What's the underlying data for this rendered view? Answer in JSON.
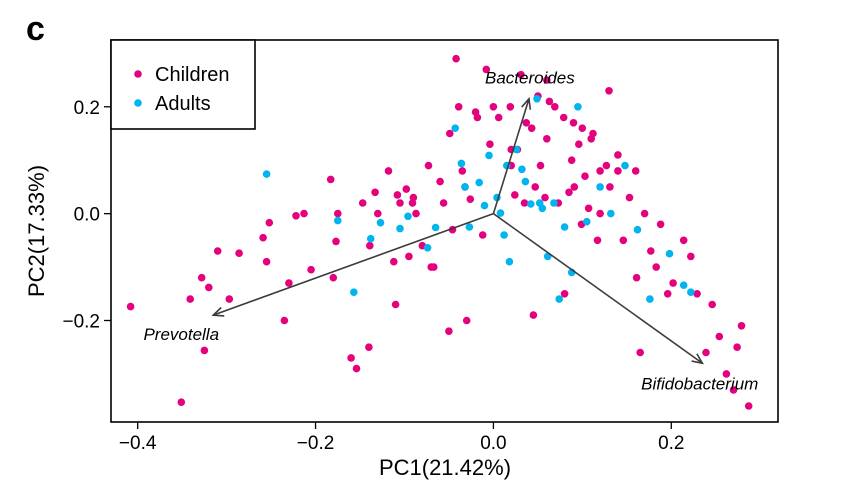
{
  "panel_label": "c",
  "chart_data": {
    "type": "scatter",
    "title": "",
    "xlabel": "PC1(21.42%)",
    "ylabel": "PC2(17.33%)",
    "xlim": [
      -0.43,
      0.32
    ],
    "ylim": [
      -0.39,
      0.325
    ],
    "xticks": [
      -0.4,
      -0.2,
      0.0,
      0.2
    ],
    "xtick_labels": [
      "−0.4",
      "−0.2",
      "0.0",
      "0.2"
    ],
    "yticks": [
      0.2,
      0.0,
      -0.2
    ],
    "ytick_labels": [
      "0.2",
      "0.0",
      "−0.2"
    ],
    "legend": {
      "position": "top-left",
      "entries": [
        "Children",
        "Adults"
      ]
    },
    "colors": {
      "Children": "#e5007e",
      "Adults": "#00b4f0",
      "arrow": "#3c3c3c"
    },
    "arrows": [
      {
        "name": "Bacteroides",
        "x0": 0.0,
        "y0": 0.0,
        "x1": 0.04,
        "y1": 0.215,
        "label_x": 0.041,
        "label_y": 0.255
      },
      {
        "name": "Prevotella",
        "x0": 0.0,
        "y0": 0.0,
        "x1": -0.315,
        "y1": -0.19,
        "label_x": -0.351,
        "label_y": -0.225
      },
      {
        "name": "Bifidobacterium",
        "x0": 0.0,
        "y0": 0.0,
        "x1": 0.235,
        "y1": -0.28,
        "label_x": 0.232,
        "label_y": -0.318
      }
    ],
    "series": [
      {
        "name": "Children",
        "color": "#e5007e",
        "x": [
          -0.408,
          -0.351,
          -0.341,
          -0.328,
          -0.325,
          -0.32,
          -0.31,
          -0.297,
          -0.286,
          -0.259,
          -0.255,
          -0.252,
          -0.235,
          -0.23,
          -0.222,
          -0.213,
          -0.205,
          -0.183,
          -0.177,
          -0.175,
          -0.154,
          -0.147,
          -0.139,
          -0.133,
          -0.13,
          -0.112,
          -0.108,
          -0.105,
          -0.098,
          -0.095,
          -0.091,
          -0.087,
          -0.08,
          -0.073,
          -0.067,
          -0.06,
          -0.056,
          -0.049,
          -0.046,
          -0.042,
          -0.039,
          -0.035,
          -0.032,
          -0.026,
          -0.018,
          -0.012,
          -0.008,
          -0.004,
          0.006,
          0.019,
          0.024,
          0.027,
          0.031,
          0.037,
          0.043,
          0.047,
          0.053,
          0.058,
          0.063,
          0.069,
          0.073,
          0.079,
          0.085,
          0.088,
          0.091,
          0.096,
          0.099,
          0.103,
          0.107,
          0.112,
          0.117,
          0.12,
          0.127,
          0.131,
          0.14,
          0.146,
          0.153,
          0.161,
          0.165,
          0.17,
          0.177,
          0.183,
          0.188,
          0.196,
          0.202,
          0.214,
          0.222,
          0.229,
          0.239,
          0.246,
          0.254,
          0.262,
          0.27,
          0.274,
          0.279,
          0.287,
          -0.118,
          -0.05,
          0.02,
          0.06,
          -0.02,
          0.1,
          0.14,
          -0.09,
          0.035,
          -0.14,
          0.08,
          0.12,
          -0.16,
          0.0,
          0.05,
          -0.07,
          0.09,
          -0.03,
          0.11,
          0.16,
          -0.11,
          0.06,
          0.045,
          -0.18,
          0.13,
          0.02
        ],
        "y": [
          -0.174,
          -0.353,
          -0.16,
          -0.12,
          -0.256,
          -0.138,
          -0.07,
          -0.16,
          -0.074,
          -0.045,
          -0.09,
          -0.017,
          -0.2,
          -0.13,
          -0.004,
          0.0,
          -0.105,
          0.064,
          -0.052,
          0.0,
          -0.29,
          0.02,
          -0.06,
          0.04,
          0.0,
          -0.09,
          0.035,
          0.02,
          0.046,
          -0.08,
          0.02,
          0.0,
          -0.06,
          0.09,
          -0.1,
          0.06,
          0.02,
          0.15,
          -0.03,
          0.29,
          0.2,
          0.08,
          0.05,
          0.027,
          0.18,
          -0.04,
          0.27,
          0.13,
          0.18,
          0.2,
          0.035,
          0.12,
          0.26,
          0.17,
          0.16,
          0.05,
          0.09,
          0.03,
          0.21,
          0.2,
          0.02,
          0.18,
          0.04,
          0.1,
          0.05,
          0.13,
          -0.02,
          0.07,
          0.01,
          0.15,
          -0.05,
          0.0,
          0.09,
          0.05,
          0.08,
          -0.05,
          0.03,
          -0.12,
          -0.26,
          0.0,
          -0.07,
          -0.1,
          -0.02,
          -0.15,
          -0.13,
          -0.05,
          -0.08,
          -0.15,
          -0.26,
          -0.17,
          -0.23,
          -0.3,
          -0.33,
          -0.25,
          -0.21,
          -0.36,
          0.08,
          -0.22,
          0.12,
          0.25,
          0.19,
          0.16,
          0.11,
          0.03,
          0.02,
          -0.25,
          -0.15,
          0.08,
          -0.27,
          0.2,
          0.22,
          -0.1,
          0.17,
          -0.2,
          0.14,
          0.08,
          -0.17,
          0.14,
          -0.19,
          -0.12,
          0.23,
          0.09
        ]
      },
      {
        "name": "Adults",
        "color": "#00b4f0",
        "x": [
          -0.255,
          -0.175,
          -0.157,
          -0.138,
          -0.127,
          -0.105,
          -0.096,
          -0.074,
          -0.065,
          -0.043,
          -0.036,
          -0.027,
          -0.016,
          -0.01,
          -0.005,
          0.004,
          0.008,
          0.012,
          0.015,
          0.026,
          0.032,
          0.042,
          0.049,
          0.055,
          0.061,
          0.068,
          0.074,
          0.08,
          0.095,
          0.105,
          0.12,
          0.132,
          0.148,
          0.162,
          0.176,
          0.198,
          0.214,
          0.222,
          -0.032,
          0.018,
          0.036,
          0.052,
          0.088
        ],
        "y": [
          0.074,
          -0.013,
          -0.147,
          -0.047,
          -0.017,
          -0.028,
          -0.005,
          -0.064,
          -0.026,
          0.16,
          0.094,
          -0.025,
          0.058,
          0.015,
          0.109,
          0.03,
          0.001,
          -0.04,
          0.09,
          0.12,
          0.083,
          0.018,
          0.215,
          0.01,
          -0.08,
          0.02,
          -0.16,
          -0.025,
          0.2,
          -0.015,
          0.05,
          0.0,
          0.09,
          -0.03,
          -0.16,
          -0.075,
          -0.134,
          -0.147,
          0.05,
          -0.09,
          0.06,
          0.02,
          -0.11
        ]
      }
    ]
  }
}
